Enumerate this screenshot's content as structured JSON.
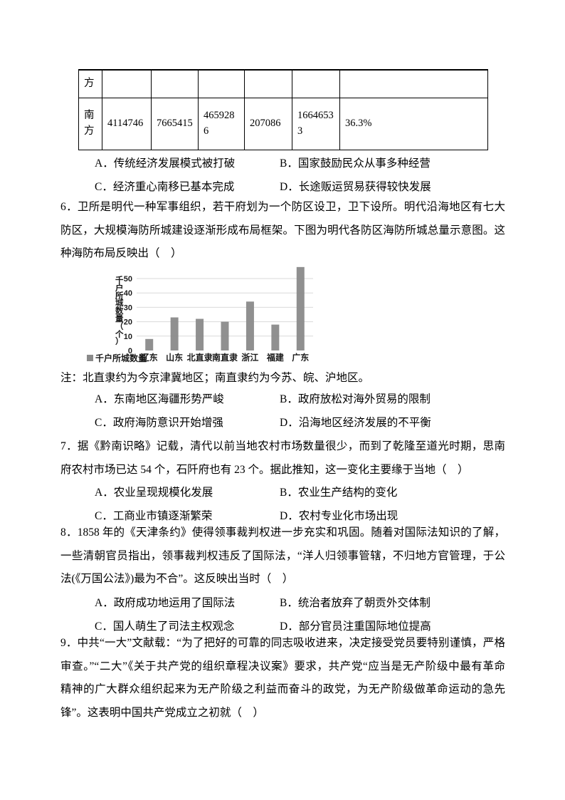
{
  "table": {
    "rows": [
      {
        "cells": [
          "方",
          "",
          "",
          "",
          "",
          "",
          ""
        ]
      },
      {
        "cells": [
          "南方",
          "4114746",
          "7665415",
          "4659286",
          "207086",
          "16646533",
          "36.3%"
        ]
      }
    ]
  },
  "question5": {
    "options": [
      "A．传统经济发展模式被打破",
      "B．国家鼓励民众从事多种经营",
      "C．经济重心南移已基本完成",
      "D．长途贩运贸易获得较快发展"
    ]
  },
  "question6": {
    "lines": [
      "6．卫所是明代一种军事组织，若干府划为一个防区设卫，卫下设所。明代沿海地区有七大",
      "防区，大规模海防所城建设逐渐形成布局框架。下图为明代各防区海防所城总量示意图。这",
      "种海防布局反映出（　）"
    ],
    "note": "注：北直隶约为今京津冀地区；南直隶约为今苏、皖、沪地区。",
    "options": [
      "A．东南地区海疆形势严峻",
      "B．政府放松对海外贸易的限制",
      "C．政府海防意识开始增强",
      "D．沿海地区经济发展的不平衡"
    ]
  },
  "chart_data": {
    "type": "bar",
    "title": "",
    "categories": [
      "辽东",
      "山东",
      "北直隶",
      "南直隶",
      "浙江",
      "福建",
      "广东"
    ],
    "values": [
      8,
      23,
      22,
      20,
      34,
      18,
      58
    ],
    "ylabel": "千户所城数量（个）",
    "legend": [
      "千户所城数量"
    ],
    "yticks": [
      0,
      10,
      20,
      30,
      40,
      50
    ],
    "ylim": [
      0,
      60
    ],
    "grid": true,
    "legend_position": "bottom-left",
    "bar_color": "#8a8a8a",
    "grid_color": "#d9d9d9"
  },
  "question7": {
    "lines": [
      "7．据《黔南识略》记载，清代以前当地农村市场数量很少，而到了乾隆至道光时期，思南",
      "府农村市场已达 54 个，石阡府也有 23 个。据此推知，这一变化主要缘于当地（　）"
    ],
    "options": [
      "A．农业呈现规模化发展",
      "B．农业生产结构的变化",
      "C．工商业市镇逐渐繁荣",
      "D．农村专业化市场出现"
    ]
  },
  "question8": {
    "lines": [
      "8．1858 年的《天津条约》使得领事裁判权进一步充实和巩固。随着对国际法知识的了解，",
      "一些清朝官员指出，领事裁判权违反了国际法，“洋人归领事管辖，不归地方官管理，于公",
      "法(《万国公法》)最为不合”。这反映出当时（　）"
    ],
    "options": [
      "A．政府成功地运用了国际法",
      "B．统治者放弃了朝贡外交体制",
      "C．国人萌生了司法主权观念",
      "D．部分官员注重国际地位提高"
    ]
  },
  "question9": {
    "lines": [
      "9．中共“一大”文献载：“为了把好的可靠的同志吸收进来，决定接受党员要特别谨慎，严格",
      "审查。”“二大”《关于共产党的组织章程决议案》要求，共产党“应当是无产阶级中最有革命",
      "精神的广大群众组织起来为无产阶级之利益而奋斗的政党，为无产阶级做革命运动的急先",
      "锋”。这表明中国共产党成立之初就（　）"
    ]
  }
}
